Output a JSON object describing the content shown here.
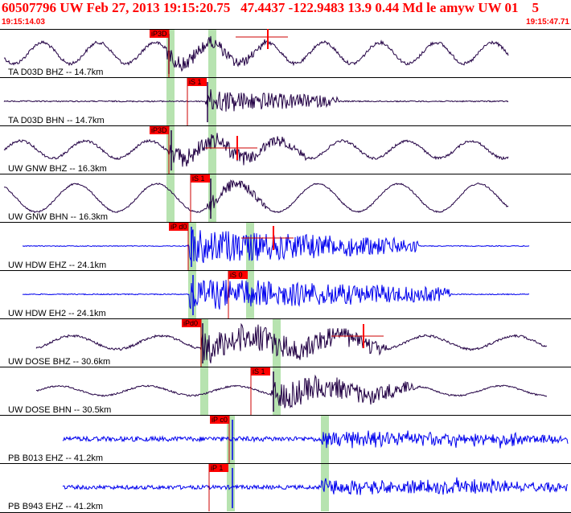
{
  "header": {
    "title": "60507796 UW Feb 27, 2013 19:15:20.75   47.4437 -122.9483 13.9 0.44 Md le amyw UW 01    5",
    "time_start": "19:15:14.03",
    "time_end": "19:15:47.71"
  },
  "colors": {
    "background": "#ffffff",
    "header_text": "#ff0000",
    "trace_dark": "#220044",
    "trace_blue": "#0000ee",
    "pick_box": "#ff0000",
    "window_band": "#b7e3b0",
    "separator": "#000000"
  },
  "traces": [
    {
      "label": "TA D03D BHZ -- 14.7km",
      "color": "dark",
      "pick": "iP3D"
    },
    {
      "label": "TA D03D BHN -- 14.7km",
      "color": "dark",
      "pick": "iS 1"
    },
    {
      "label": "UW GNW BHZ -- 16.3km",
      "color": "dark",
      "pick": "iP3D"
    },
    {
      "label": "UW GNW BHN -- 16.3km",
      "color": "dark",
      "pick": "iS 1"
    },
    {
      "label": "UW HDW EHZ -- 24.1km",
      "color": "blue",
      "pick": "iP d0"
    },
    {
      "label": "UW HDW EH2 -- 24.1km",
      "color": "blue",
      "pick": "iS 0"
    },
    {
      "label": "UW DOSE BHZ -- 30.6km",
      "color": "dark",
      "pick": "iPd0"
    },
    {
      "label": "UW DOSE BHN -- 30.5km",
      "color": "dark",
      "pick": "iS 1"
    },
    {
      "label": "PB B013 EHZ -- 41.2km",
      "color": "blue",
      "pick": "iP c0"
    },
    {
      "label": "PB B943 EHZ -- 41.2km",
      "color": "blue",
      "pick": "iP 1"
    }
  ]
}
